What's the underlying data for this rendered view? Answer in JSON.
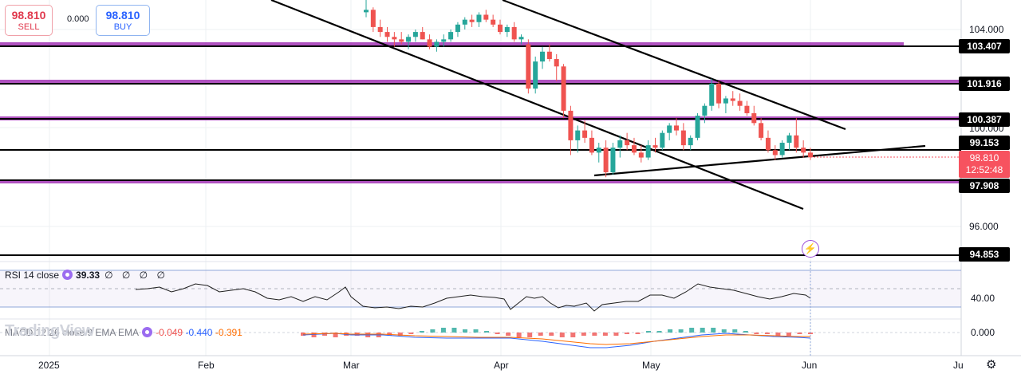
{
  "trade": {
    "sell_price": "98.810",
    "sell_label": "SELL",
    "spread": "0.000",
    "buy_price": "98.810",
    "buy_label": "BUY"
  },
  "price_axis": {
    "ticks": [
      "104.000",
      "100.000",
      "96.000"
    ],
    "level_labels": [
      "103.407",
      "101.916",
      "100.387",
      "99.153",
      "97.908",
      "94.853"
    ],
    "current_price": "98.810",
    "countdown": "12:52:48"
  },
  "time_axis": [
    "2025",
    "Feb",
    "Mar",
    "Apr",
    "May",
    "Jun",
    "Ju"
  ],
  "rsi": {
    "legend": "RSI 14 close",
    "value": "39.33",
    "extra": "∅ ∅ ∅ ∅",
    "axis": "40.00"
  },
  "macd": {
    "legend": "MACD 12 26 close 9 EMA EMA",
    "hist": "-0.049",
    "macd": "-0.440",
    "signal": "-0.391",
    "axis": "0.000"
  },
  "watermark": "TradingView",
  "colors": {
    "up": "#26a69a",
    "down": "#ef5350",
    "level_purple": "#9c27b0",
    "rsi_band": "#7e57c2",
    "macd_line": "#2962ff",
    "signal_line": "#ff6d00"
  },
  "chart_data": {
    "type": "candlestick",
    "ylim": [
      94.5,
      104.9
    ],
    "x": [
      "2025-03-01",
      "2025-06-03"
    ],
    "candles": [
      [
        104.7,
        105.3,
        104.5,
        104.8
      ],
      [
        104.8,
        104.9,
        103.9,
        104.1
      ],
      [
        104.1,
        104.4,
        103.7,
        103.9
      ],
      [
        103.9,
        104.1,
        103.5,
        103.7
      ],
      [
        103.7,
        103.9,
        103.3,
        103.6
      ],
      [
        103.6,
        103.9,
        103.4,
        103.5
      ],
      [
        103.5,
        103.8,
        103.2,
        103.7
      ],
      [
        103.7,
        104.0,
        103.5,
        103.9
      ],
      [
        103.9,
        104.1,
        103.6,
        103.6
      ],
      [
        103.6,
        103.8,
        103.2,
        103.3
      ],
      [
        103.3,
        103.6,
        103.1,
        103.5
      ],
      [
        103.5,
        103.8,
        103.3,
        103.6
      ],
      [
        103.6,
        104.0,
        103.5,
        103.9
      ],
      [
        103.9,
        104.3,
        103.7,
        104.2
      ],
      [
        104.2,
        104.5,
        104.0,
        104.4
      ],
      [
        104.4,
        104.6,
        104.1,
        104.3
      ],
      [
        104.3,
        104.7,
        104.1,
        104.6
      ],
      [
        104.6,
        104.8,
        104.3,
        104.4
      ],
      [
        104.4,
        104.6,
        104.1,
        104.2
      ],
      [
        104.2,
        104.4,
        103.8,
        103.9
      ],
      [
        103.9,
        104.2,
        103.7,
        104.1
      ],
      [
        104.1,
        104.3,
        103.5,
        103.6
      ],
      [
        103.6,
        103.8,
        103.4,
        103.7
      ],
      [
        103.4,
        103.6,
        101.4,
        101.6
      ],
      [
        101.6,
        102.9,
        101.4,
        102.7
      ],
      [
        102.7,
        103.3,
        102.4,
        103.1
      ],
      [
        103.1,
        103.4,
        102.7,
        102.8
      ],
      [
        102.8,
        103.0,
        101.9,
        102.5
      ],
      [
        102.5,
        102.6,
        100.4,
        100.7
      ],
      [
        100.7,
        100.9,
        98.9,
        99.5
      ],
      [
        99.5,
        100.1,
        99.0,
        99.9
      ],
      [
        99.9,
        100.3,
        99.4,
        99.6
      ],
      [
        99.6,
        99.9,
        98.9,
        99.0
      ],
      [
        99.0,
        99.4,
        98.6,
        99.2
      ],
      [
        99.2,
        99.5,
        98.0,
        98.2
      ],
      [
        98.2,
        99.4,
        98.1,
        99.2
      ],
      [
        99.2,
        99.7,
        98.8,
        99.5
      ],
      [
        99.5,
        99.8,
        99.1,
        99.3
      ],
      [
        99.3,
        99.6,
        98.9,
        99.0
      ],
      [
        99.0,
        99.3,
        98.6,
        98.8
      ],
      [
        98.8,
        99.5,
        98.7,
        99.3
      ],
      [
        99.3,
        99.6,
        99.0,
        99.2
      ],
      [
        99.2,
        99.9,
        99.1,
        99.8
      ],
      [
        99.8,
        100.2,
        99.5,
        100.1
      ],
      [
        100.1,
        100.4,
        99.7,
        99.9
      ],
      [
        99.9,
        100.2,
        99.1,
        99.3
      ],
      [
        99.3,
        99.7,
        99.1,
        99.6
      ],
      [
        99.6,
        100.6,
        99.5,
        100.5
      ],
      [
        100.5,
        101.0,
        100.2,
        100.9
      ],
      [
        100.9,
        102.0,
        100.7,
        101.8
      ],
      [
        101.8,
        101.9,
        100.8,
        101.0
      ],
      [
        101.0,
        101.3,
        100.6,
        101.2
      ],
      [
        101.2,
        101.5,
        100.9,
        101.1
      ],
      [
        101.1,
        101.4,
        100.7,
        100.9
      ],
      [
        100.9,
        101.1,
        100.5,
        100.6
      ],
      [
        100.6,
        100.9,
        100.1,
        100.2
      ],
      [
        100.2,
        100.4,
        99.5,
        99.6
      ],
      [
        99.6,
        99.9,
        99.0,
        99.1
      ],
      [
        99.1,
        99.3,
        98.7,
        98.9
      ],
      [
        98.9,
        99.5,
        98.8,
        99.4
      ],
      [
        99.4,
        99.8,
        99.1,
        99.7
      ],
      [
        99.7,
        100.4,
        99.0,
        99.2
      ],
      [
        99.2,
        99.5,
        98.8,
        99.0
      ],
      [
        99.0,
        99.2,
        98.7,
        98.81
      ]
    ]
  }
}
